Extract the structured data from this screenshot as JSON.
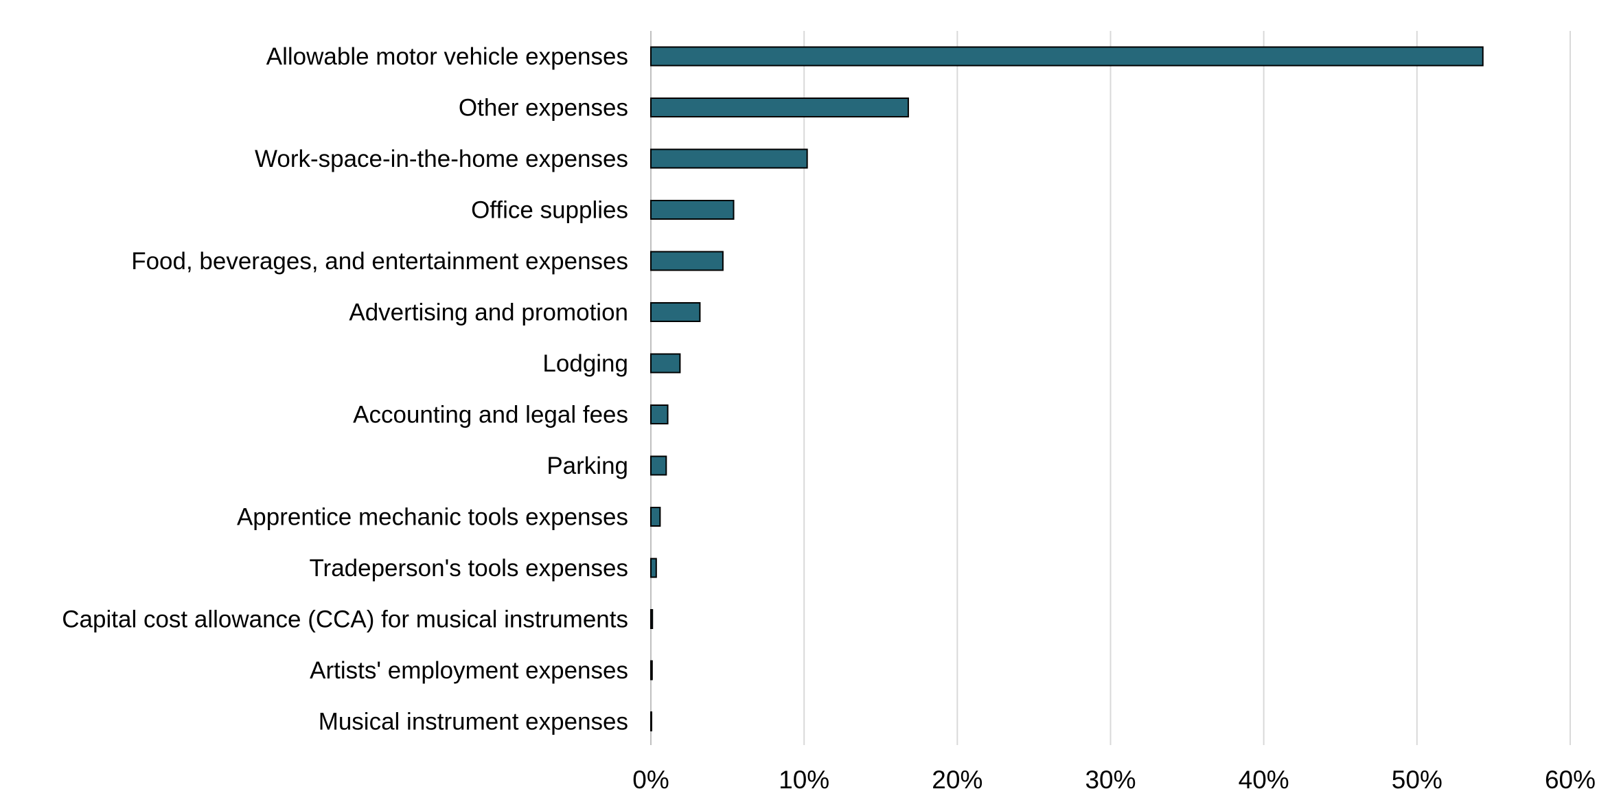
{
  "chart_data": {
    "type": "bar",
    "orientation": "horizontal",
    "title": "",
    "xlabel": "",
    "ylabel": "",
    "xlim": [
      0,
      60
    ],
    "x_ticks": [
      0,
      10,
      20,
      30,
      40,
      50,
      60
    ],
    "x_tick_labels": [
      "0%",
      "10%",
      "20%",
      "30%",
      "40%",
      "50%",
      "60%"
    ],
    "grid": "vertical",
    "legend": "none",
    "bar_color": "#26687a",
    "bar_border_color": "#000000",
    "gridline_color": "#d9d9d9",
    "categories": [
      "Allowable motor vehicle expenses",
      "Other expenses",
      "Work-space-in-the-home expenses",
      "Office supplies",
      "Food, beverages, and entertainment expenses",
      "Advertising and promotion",
      "Lodging",
      "Accounting and legal fees",
      "Parking",
      "Apprentice mechanic tools expenses",
      "Tradeperson's tools expenses",
      "Capital cost allowance (CCA) for musical instruments",
      "Artists' employment expenses",
      "Musical instrument expenses"
    ],
    "values": [
      54.3,
      16.8,
      10.2,
      5.4,
      4.7,
      3.2,
      1.9,
      1.1,
      1.0,
      0.6,
      0.35,
      0.1,
      0.08,
      0.03
    ]
  }
}
